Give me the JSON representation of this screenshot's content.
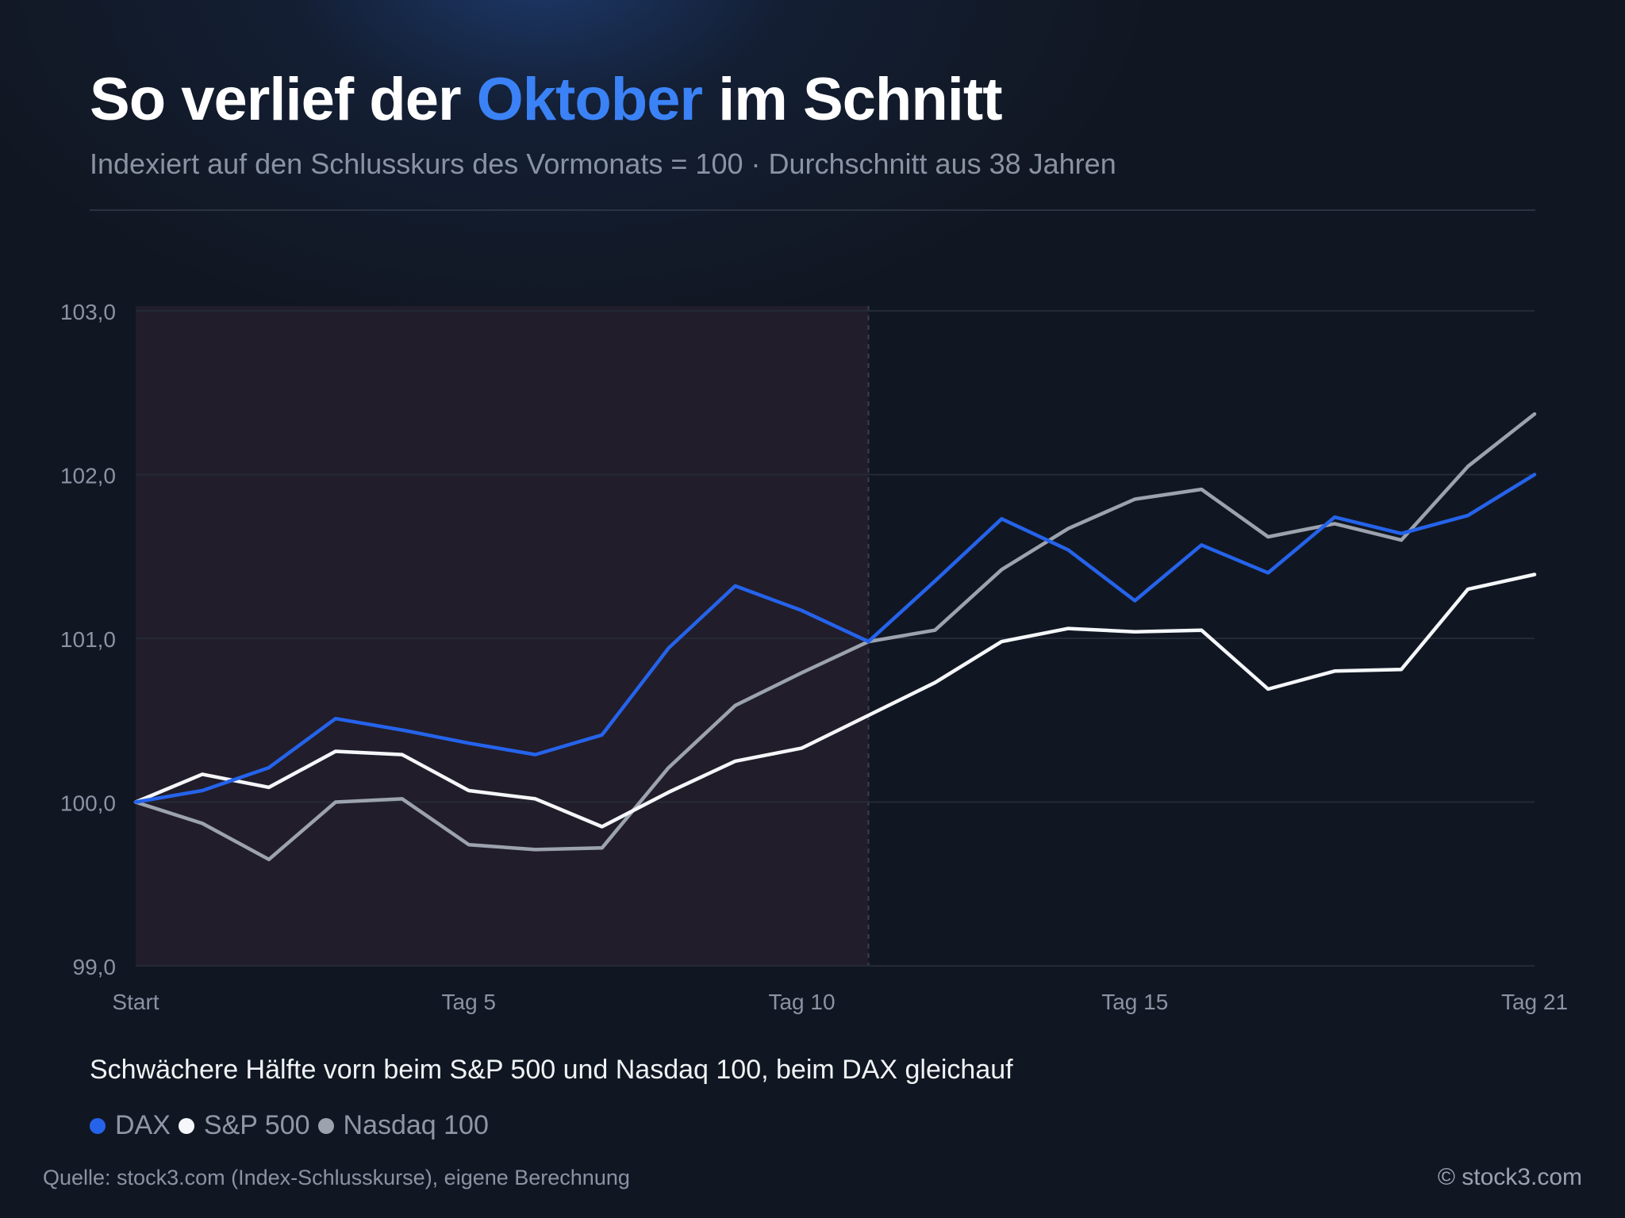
{
  "header": {
    "title_pre": "So verlief der ",
    "title_accent": "Oktober",
    "title_post": " im Schnitt",
    "subtitle": "Indexiert auf den Schlusskurs des Vormonats = 100 · Durchschnitt aus 38 Jahren"
  },
  "annotation": "Schwächere Hälfte vorn beim S&P 500 und Nasdaq 100, beim DAX gleichauf",
  "legend": [
    {
      "label": "DAX",
      "color": "#2563eb"
    },
    {
      "label": "S&P 500",
      "color": "#f5f7fa"
    },
    {
      "label": "Nasdaq 100",
      "color": "#9ca3af"
    }
  ],
  "footer": {
    "source": "Quelle: stock3.com (Index-Schlusskurse), eigene Berechnung",
    "copyright": "© stock3.com"
  },
  "colors": {
    "accent": "#3b82f6",
    "background": "#111722",
    "highlight_region": "#231e2b"
  },
  "chart_data": {
    "type": "line",
    "x": [
      0,
      1,
      2,
      3,
      4,
      5,
      6,
      7,
      8,
      9,
      10,
      11,
      12,
      13,
      14,
      15,
      16,
      17,
      18,
      19,
      20,
      21
    ],
    "x_ticks": [
      {
        "x": 0,
        "label": "Start"
      },
      {
        "x": 5,
        "label": "Tag 5"
      },
      {
        "x": 10,
        "label": "Tag 10"
      },
      {
        "x": 15,
        "label": "Tag 15"
      },
      {
        "x": 21,
        "label": "Tag 21"
      }
    ],
    "y_ticks": [
      {
        "y": 99,
        "label": "99,0"
      },
      {
        "y": 100,
        "label": "100,0"
      },
      {
        "y": 101,
        "label": "101,0"
      },
      {
        "y": 102,
        "label": "102,0"
      },
      {
        "y": 103,
        "label": "103,0"
      }
    ],
    "xlim": [
      0,
      21
    ],
    "ylim": [
      99,
      103
    ],
    "grid": "horizontal",
    "highlight_range": [
      0,
      11
    ],
    "series": [
      {
        "name": "DAX",
        "color": "#2563eb",
        "values": [
          100.0,
          100.07,
          100.21,
          100.51,
          100.44,
          100.36,
          100.29,
          100.41,
          100.94,
          101.32,
          101.17,
          100.98,
          101.35,
          101.73,
          101.54,
          101.23,
          101.57,
          101.4,
          101.74,
          101.64,
          101.75,
          102.0
        ]
      },
      {
        "name": "S&P 500",
        "color": "#f5f7fa",
        "values": [
          100.0,
          100.17,
          100.09,
          100.31,
          100.29,
          100.07,
          100.02,
          99.85,
          100.06,
          100.25,
          100.33,
          100.53,
          100.73,
          100.98,
          101.06,
          101.04,
          101.05,
          100.69,
          100.8,
          100.81,
          101.3,
          101.39
        ]
      },
      {
        "name": "Nasdaq 100",
        "color": "#9ca3af",
        "values": [
          100.0,
          99.87,
          99.65,
          100.0,
          100.02,
          99.74,
          99.71,
          99.72,
          100.21,
          100.59,
          100.79,
          100.98,
          101.05,
          101.42,
          101.67,
          101.85,
          101.91,
          101.62,
          101.7,
          101.6,
          102.05,
          102.37
        ]
      }
    ]
  }
}
